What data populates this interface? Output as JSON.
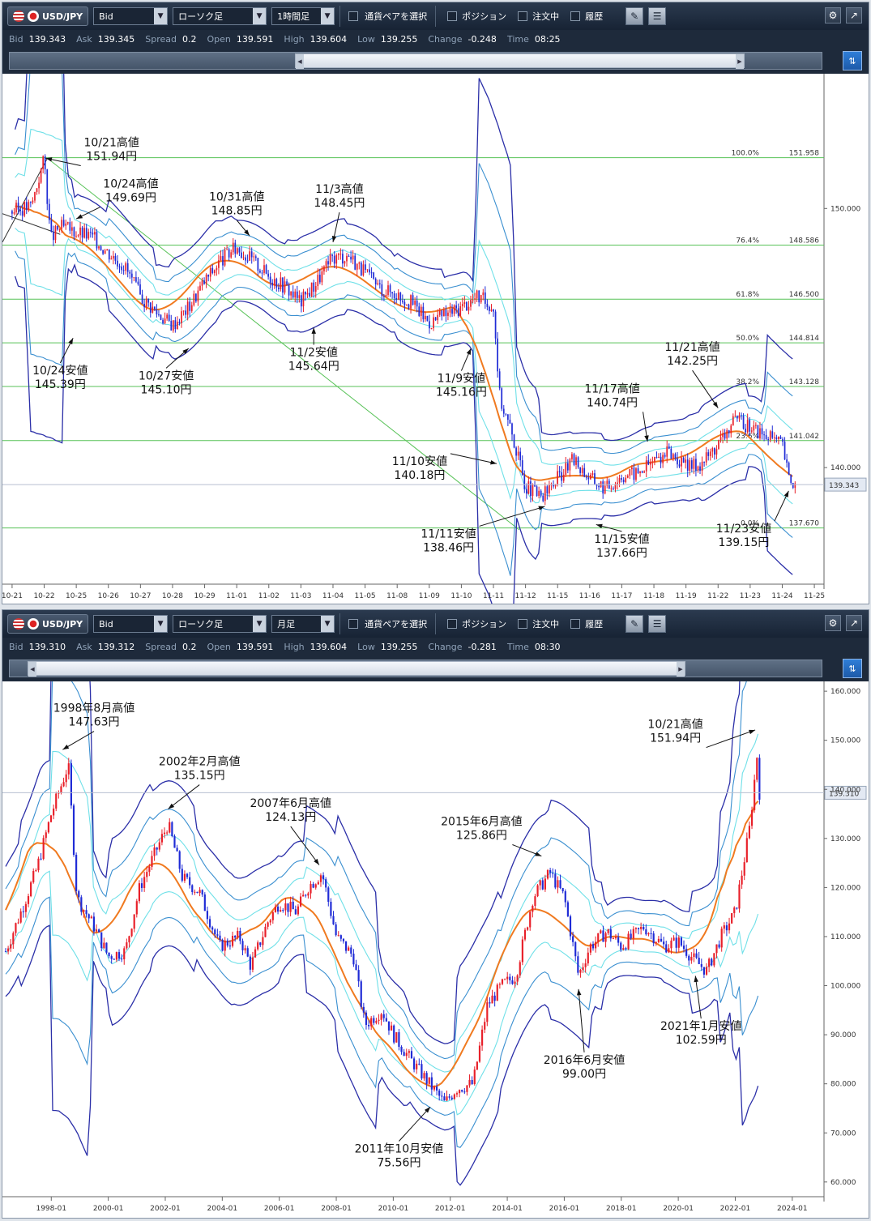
{
  "toolbar": {
    "pair": "USD/JPY",
    "price_type": "Bid",
    "chart_type": "ローソク足",
    "pair_select_label": "通貨ペアを選択",
    "position_label": "ポジション",
    "orders_label": "注文中",
    "history_label": "履歴"
  },
  "panels": [
    {
      "period": "1時間足",
      "quote": {
        "bid_label": "Bid",
        "bid": "139.343",
        "ask_label": "Ask",
        "ask": "139.345",
        "spread_label": "Spread",
        "spread": "0.2",
        "open_label": "Open",
        "open": "139.591",
        "high_label": "High",
        "high": "139.604",
        "low_label": "Low",
        "low": "139.255",
        "change_label": "Change",
        "change": "-0.248",
        "time_label": "Time",
        "time": "08:25"
      }
    },
    {
      "period": "月足",
      "quote": {
        "bid_label": "Bid",
        "bid": "139.310",
        "ask_label": "Ask",
        "ask": "139.312",
        "spread_label": "Spread",
        "spread": "0.2",
        "open_label": "Open",
        "open": "139.591",
        "high_label": "High",
        "high": "139.604",
        "low_label": "Low",
        "low": "139.255",
        "change_label": "Change",
        "change": "-0.281",
        "time_label": "Time",
        "time": "08:30"
      }
    }
  ],
  "colors": {
    "bull": "#e8202a",
    "bear": "#1f2bd6",
    "ma": "#f07a20",
    "band1": "#6fe0e8",
    "band2": "#3a8fd0",
    "band3": "#2b2fa8",
    "fib": "#57c257",
    "trend": "#57c257"
  },
  "chart_data": [
    {
      "type": "candlestick",
      "x_ticks": [
        "10-21",
        "10-22",
        "10-25",
        "10-26",
        "10-27",
        "10-28",
        "10-29",
        "11-01",
        "11-02",
        "11-03",
        "11-04",
        "11-05",
        "11-08",
        "11-09",
        "11-10",
        "11-11",
        "11-12",
        "11-15",
        "11-16",
        "11-17",
        "11-18",
        "11-19",
        "11-22",
        "11-23",
        "11-24",
        "11-25"
      ],
      "y_ticks": [
        "150.000",
        "140.000"
      ],
      "ylim": [
        135.5,
        155.2
      ],
      "current_price": "139.343",
      "current_value": 139.343,
      "fib_levels": [
        {
          "label": "100.0%",
          "value_label": "151.958",
          "value": 151.958
        },
        {
          "label": "76.4%",
          "value_label": "148.586",
          "value": 148.586
        },
        {
          "label": "61.8%",
          "value_label": "146.500",
          "value": 146.5
        },
        {
          "label": "50.0%",
          "value_label": "144.814",
          "value": 144.814
        },
        {
          "label": "38.2%",
          "value_label": "143.128",
          "value": 143.128
        },
        {
          "label": "23.6%",
          "value_label": "141.042",
          "value": 141.042
        },
        {
          "label": "0.0%",
          "value_label": "137.670",
          "value": 137.67
        }
      ],
      "trendline": {
        "from": {
          "x": 1.1,
          "y": 151.94
        },
        "to": {
          "x": 15.8,
          "y": 137.6
        }
      },
      "path": [
        [
          0,
          149.9
        ],
        [
          0.6,
          150.1
        ],
        [
          1,
          151.94
        ],
        [
          1.2,
          148.8
        ],
        [
          1.5,
          149.3
        ],
        [
          2,
          149.1
        ],
        [
          2.5,
          148.9
        ],
        [
          3,
          148.3
        ],
        [
          3.5,
          147.8
        ],
        [
          4,
          146.6
        ],
        [
          4.5,
          146.0
        ],
        [
          5,
          145.5
        ],
        [
          5.5,
          146.2
        ],
        [
          6,
          147.2
        ],
        [
          6.5,
          148.0
        ],
        [
          7,
          148.5
        ],
        [
          7.5,
          148.0
        ],
        [
          8,
          147.4
        ],
        [
          8.5,
          147.0
        ],
        [
          9,
          146.4
        ],
        [
          9.5,
          147.2
        ],
        [
          10,
          148.1
        ],
        [
          10.5,
          148.2
        ],
        [
          11,
          147.5
        ],
        [
          11.5,
          146.9
        ],
        [
          12,
          146.7
        ],
        [
          12.5,
          146.3
        ],
        [
          13,
          145.6
        ],
        [
          13.5,
          145.9
        ],
        [
          14,
          146.2
        ],
        [
          14.5,
          146.6
        ],
        [
          15,
          146.2
        ],
        [
          15.2,
          142.7
        ],
        [
          15.6,
          141.2
        ],
        [
          16,
          139.3
        ],
        [
          16.5,
          138.8
        ],
        [
          17,
          139.6
        ],
        [
          17.5,
          140.3
        ],
        [
          18,
          139.6
        ],
        [
          18.5,
          139.2
        ],
        [
          19,
          139.7
        ],
        [
          19.5,
          139.8
        ],
        [
          20,
          140.3
        ],
        [
          20.5,
          140.6
        ],
        [
          21,
          140.0
        ],
        [
          21.5,
          140.2
        ],
        [
          22,
          140.9
        ],
        [
          22.5,
          141.8
        ],
        [
          23,
          141.6
        ],
        [
          23.5,
          141.2
        ],
        [
          24,
          140.9
        ],
        [
          24.2,
          139.6
        ],
        [
          24.4,
          139.34
        ]
      ],
      "bands_half_width": 1.0,
      "annotations": [
        {
          "lines": [
            "10/21高値",
            "151.94円"
          ],
          "x": 3.1,
          "y": 152.4,
          "target_x": 1.05,
          "target_y": 151.94
        },
        {
          "lines": [
            "10/24高値",
            "149.69円"
          ],
          "x": 3.7,
          "y": 150.8,
          "target_x": 2.0,
          "target_y": 149.6
        },
        {
          "lines": [
            "10/31高値",
            "148.85円"
          ],
          "x": 7.0,
          "y": 150.3,
          "target_x": 7.4,
          "target_y": 148.95
        },
        {
          "lines": [
            "11/3高値",
            "148.45円"
          ],
          "x": 10.2,
          "y": 150.6,
          "target_x": 10.0,
          "target_y": 148.7
        },
        {
          "lines": [
            "10/24安値",
            "145.39円"
          ],
          "x": 1.5,
          "y": 143.6,
          "target_x": 1.9,
          "target_y": 145.0
        },
        {
          "lines": [
            "10/27安値",
            "145.10円"
          ],
          "x": 4.8,
          "y": 143.4,
          "target_x": 5.5,
          "target_y": 144.6
        },
        {
          "lines": [
            "11/2安値",
            "145.64円"
          ],
          "x": 9.4,
          "y": 144.3,
          "target_x": 9.4,
          "target_y": 145.4
        },
        {
          "lines": [
            "11/9安値",
            "145.16円"
          ],
          "x": 14.0,
          "y": 143.3,
          "target_x": 14.3,
          "target_y": 144.6
        },
        {
          "lines": [
            "11/21高値",
            "142.25円"
          ],
          "x": 21.2,
          "y": 144.5,
          "target_x": 22.0,
          "target_y": 142.3
        },
        {
          "lines": [
            "11/17高値",
            "140.74円"
          ],
          "x": 18.7,
          "y": 142.9,
          "target_x": 19.8,
          "target_y": 141.0
        },
        {
          "lines": [
            "11/10安値",
            "140.18円"
          ],
          "x": 12.7,
          "y": 140.1,
          "target_x": 15.1,
          "target_y": 140.15
        },
        {
          "lines": [
            "11/11安値",
            "138.46円"
          ],
          "x": 13.6,
          "y": 137.3,
          "target_x": 16.6,
          "target_y": 138.5
        },
        {
          "lines": [
            "11/15安値",
            "137.66円"
          ],
          "x": 19.0,
          "y": 137.1,
          "target_x": 18.2,
          "target_y": 137.8
        },
        {
          "lines": [
            "11/23安値",
            "139.15円"
          ],
          "x": 22.8,
          "y": 137.5,
          "target_x": 24.2,
          "target_y": 139.1
        }
      ]
    },
    {
      "type": "candlestick",
      "x_ticks": [
        "1998-01",
        "2000-01",
        "2002-01",
        "2004-01",
        "2006-01",
        "2008-01",
        "2010-01",
        "2012-01",
        "2014-01",
        "2016-01",
        "2018-01",
        "2020-01",
        "2022-01",
        "2024-01"
      ],
      "x_range": [
        1996.4,
        2025.0
      ],
      "y_ticks": [
        "160.000",
        "150.000",
        "140.000",
        "130.000",
        "120.000",
        "110.000",
        "100.000",
        "90.000",
        "80.000",
        "70.000",
        "60.000"
      ],
      "ylim": [
        57.0,
        162.0
      ],
      "current_price": "139.310",
      "current_value": 139.31,
      "path": [
        [
          1996.4,
          107
        ],
        [
          1997.0,
          116
        ],
        [
          1997.5,
          124
        ],
        [
          1998.0,
          135
        ],
        [
          1998.6,
          145
        ],
        [
          1998.9,
          118
        ],
        [
          1999.5,
          112
        ],
        [
          2000.0,
          106
        ],
        [
          2000.6,
          107
        ],
        [
          2001.1,
          120
        ],
        [
          2002.1,
          133
        ],
        [
          2002.6,
          122
        ],
        [
          2003.2,
          119
        ],
        [
          2003.9,
          108
        ],
        [
          2004.6,
          110
        ],
        [
          2005.0,
          104
        ],
        [
          2005.6,
          113
        ],
        [
          2006.0,
          117
        ],
        [
          2006.6,
          115
        ],
        [
          2007.0,
          120
        ],
        [
          2007.5,
          123
        ],
        [
          2008.0,
          110
        ],
        [
          2008.6,
          106
        ],
        [
          2009.0,
          92
        ],
        [
          2009.6,
          95
        ],
        [
          2010.0,
          90
        ],
        [
          2010.6,
          85
        ],
        [
          2011.0,
          82
        ],
        [
          2011.8,
          76
        ],
        [
          2012.2,
          79
        ],
        [
          2012.8,
          80
        ],
        [
          2013.3,
          96
        ],
        [
          2013.8,
          100
        ],
        [
          2014.3,
          102
        ],
        [
          2014.9,
          118
        ],
        [
          2015.5,
          123
        ],
        [
          2016.0,
          118
        ],
        [
          2016.5,
          102
        ],
        [
          2016.9,
          108
        ],
        [
          2017.5,
          111
        ],
        [
          2018.0,
          108
        ],
        [
          2018.8,
          112
        ],
        [
          2019.5,
          108
        ],
        [
          2020.0,
          109
        ],
        [
          2020.6,
          105
        ],
        [
          2021.0,
          103
        ],
        [
          2021.5,
          110
        ],
        [
          2022.0,
          115
        ],
        [
          2022.5,
          132
        ],
        [
          2022.8,
          149
        ],
        [
          2022.85,
          139.31
        ]
      ],
      "bands_half_width": 4.8,
      "annotations": [
        {
          "lines": [
            "1998年8月高値",
            "147.63円"
          ],
          "x": 1999.5,
          "y": 155.8,
          "target_x": 1998.4,
          "target_y": 148.1
        },
        {
          "lines": [
            "2002年2月高値",
            "135.15円"
          ],
          "x": 2003.2,
          "y": 144.9,
          "target_x": 2002.1,
          "target_y": 136.0
        },
        {
          "lines": [
            "2007年6月高値",
            "124.13円"
          ],
          "x": 2006.4,
          "y": 136.4,
          "target_x": 2007.4,
          "target_y": 124.6
        },
        {
          "lines": [
            "2015年6月高値",
            "125.86円"
          ],
          "x": 2013.1,
          "y": 132.7,
          "target_x": 2015.2,
          "target_y": 126.4
        },
        {
          "lines": [
            "10/21高値",
            "151.94円"
          ],
          "x": 2019.9,
          "y": 152.5,
          "target_x": 2022.7,
          "target_y": 152.1
        },
        {
          "lines": [
            "2016年6月安値",
            "99.00円"
          ],
          "x": 2016.7,
          "y": 84.1,
          "target_x": 2016.5,
          "target_y": 99.3
        },
        {
          "lines": [
            "2021年1月安値",
            "102.59円"
          ],
          "x": 2020.8,
          "y": 91.0,
          "target_x": 2020.6,
          "target_y": 102.0
        },
        {
          "lines": [
            "2011年10月安値",
            "75.56円"
          ],
          "x": 2010.2,
          "y": 66.0,
          "target_x": 2011.3,
          "target_y": 75.3
        }
      ]
    }
  ]
}
